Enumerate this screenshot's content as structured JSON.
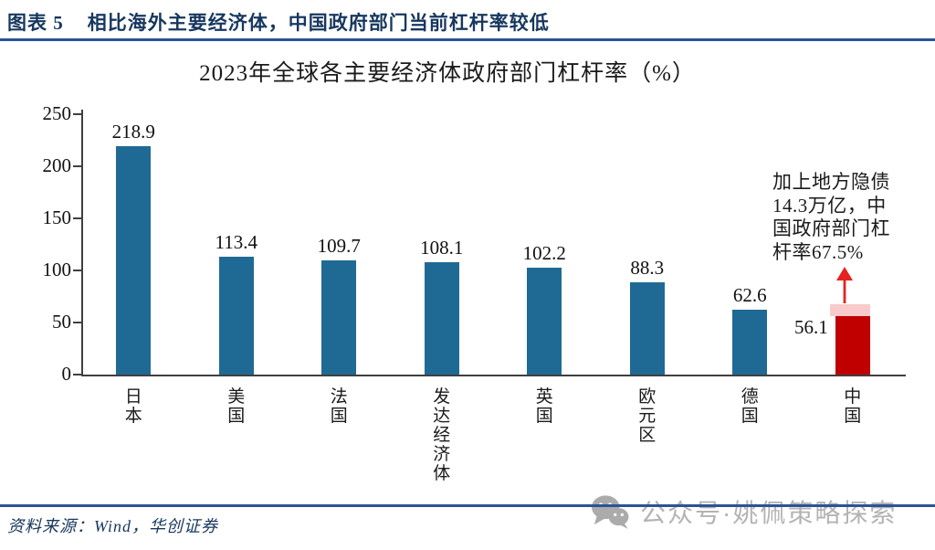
{
  "figure": {
    "label": "图表 5",
    "title": "相比海外主要经济体，中国政府部门当前杠杆率较低"
  },
  "chart_data": {
    "type": "bar",
    "title": "2023年全球各主要经济体政府部门杠杆率（%）",
    "categories": [
      "日本",
      "美国",
      "法国",
      "发达经济体",
      "英国",
      "欧元区",
      "德国",
      "中国"
    ],
    "category_keys": [
      "japan",
      "usa",
      "france",
      "developed-economies",
      "uk",
      "eurozone",
      "germany",
      "china"
    ],
    "values": [
      218.9,
      113.4,
      109.7,
      108.1,
      102.2,
      88.3,
      62.6,
      56.1
    ],
    "value_labels": [
      "218.9",
      "113.4",
      "109.7",
      "108.1",
      "102.2",
      "88.3",
      "62.6",
      "56.1"
    ],
    "ylim": [
      0,
      250
    ],
    "yticks": [
      0,
      50,
      100,
      150,
      200,
      250
    ],
    "grid": false,
    "legend": null,
    "highlight": {
      "category": "中国",
      "base_value": 56.1,
      "extended_value": 67.5,
      "annotation": "加上地方隐债\n14.3万亿，中\n国政府部门杠\n杆率67.5%"
    },
    "colors": {
      "bar": "#1F6A94",
      "highlight_bar": "#C00000",
      "highlight_cap": "#F9CACB",
      "arrow": "#E42320",
      "axis": "#404040",
      "accent_navy": "#17375E",
      "rule_blue": "#2A5495"
    }
  },
  "footer": {
    "source": "资料来源：Wind，华创证券",
    "watermark": "公众号·姚佩策略探索"
  }
}
